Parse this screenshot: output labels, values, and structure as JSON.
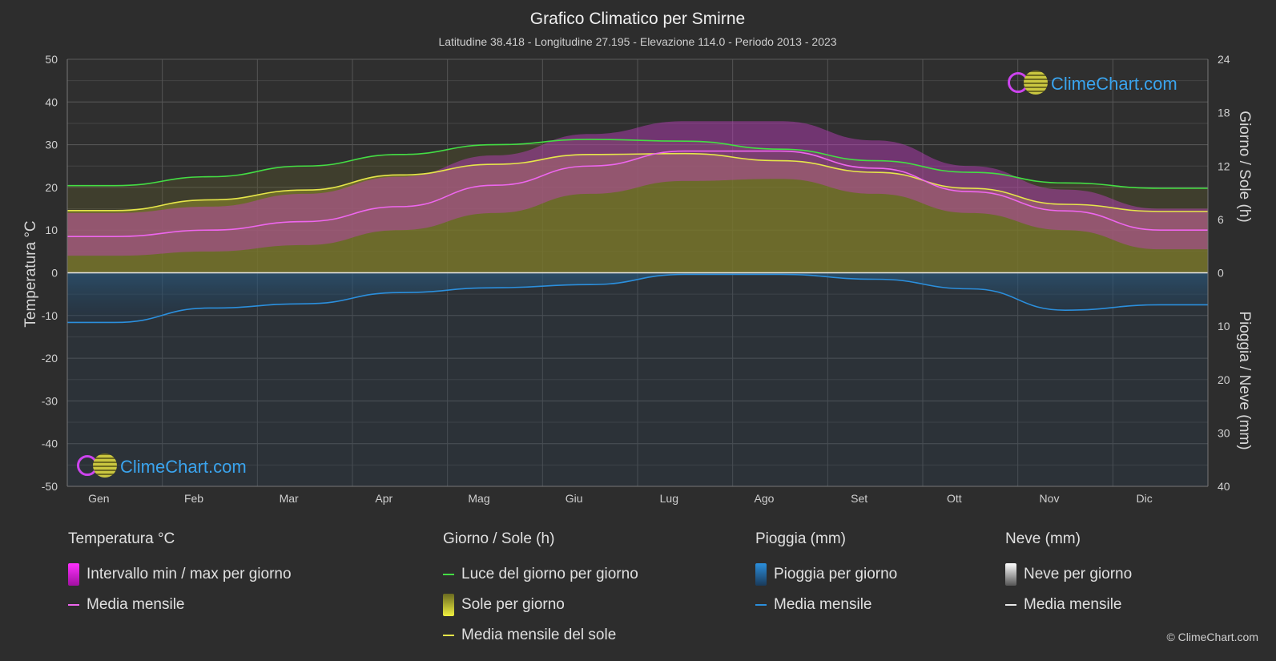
{
  "chart_data": {
    "type": "area",
    "title": "Grafico Climatico per Smirne",
    "subtitle": "Latitudine 38.418 - Longitudine 27.195 - Elevazione 114.0 - Periodo 2013 - 2023",
    "categories": [
      "Gen",
      "Feb",
      "Mar",
      "Apr",
      "Mag",
      "Giu",
      "Lug",
      "Ago",
      "Set",
      "Ott",
      "Nov",
      "Dic"
    ],
    "axes": {
      "left": {
        "label": "Temperatura °C",
        "min": -50,
        "max": 50,
        "ticks": [
          "50",
          "40",
          "30",
          "20",
          "10",
          "0",
          "-10",
          "-20",
          "-30",
          "-40",
          "-50"
        ]
      },
      "right_top": {
        "label": "Giorno / Sole (h)",
        "min": 0,
        "max": 24,
        "ticks": [
          "24",
          "18",
          "12",
          "6",
          "0"
        ]
      },
      "right_bottom": {
        "label": "Pioggia / Neve (mm)",
        "min": 0,
        "max": 40,
        "ticks": [
          "0",
          "10",
          "20",
          "30",
          "40"
        ]
      }
    },
    "grid": true,
    "series": [
      {
        "name": "Luce del giorno per giorno",
        "unit": "h",
        "color": "#44dd44",
        "values": [
          9.8,
          10.8,
          12.0,
          13.3,
          14.4,
          15.0,
          14.8,
          13.9,
          12.6,
          11.3,
          10.1,
          9.5
        ]
      },
      {
        "name": "Media mensile del sole",
        "unit": "h",
        "color": "#e6e64a",
        "values": [
          7.0,
          8.2,
          9.3,
          11.0,
          12.2,
          13.3,
          13.4,
          12.6,
          11.3,
          9.5,
          7.7,
          6.9
        ]
      },
      {
        "name": "Media mensile",
        "group": "Temperatura °C",
        "unit": "°C",
        "color": "#ee66ee",
        "values": [
          8.5,
          10.0,
          12.0,
          15.5,
          20.5,
          25.0,
          28.5,
          28.5,
          24.5,
          19.0,
          14.5,
          10.0
        ]
      },
      {
        "name": "Intervallo min / max per giorno (max)",
        "unit": "°C",
        "values": [
          14,
          15.5,
          18.5,
          22.5,
          27.5,
          32.5,
          35.5,
          35.5,
          31,
          25,
          19.5,
          15
        ]
      },
      {
        "name": "Intervallo min / max per giorno (min)",
        "unit": "°C",
        "values": [
          4,
          5,
          6.5,
          10,
          14,
          18.5,
          21.5,
          22,
          18.5,
          14,
          10,
          5.5
        ]
      },
      {
        "name": "Media mensile",
        "group": "Pioggia (mm)",
        "unit": "mm",
        "color": "#2b8fdd",
        "values": [
          9.3,
          6.6,
          5.8,
          3.7,
          2.8,
          2.2,
          0.3,
          0.3,
          1.2,
          3.0,
          7.0,
          6.0
        ]
      }
    ]
  },
  "legend": {
    "groups": [
      {
        "title": "Temperatura °C",
        "items": [
          {
            "label": "Intervallo min / max per giorno",
            "kind": "box",
            "color": "#e020e0"
          },
          {
            "label": "Media mensile",
            "kind": "line",
            "color": "#ee66ee"
          }
        ]
      },
      {
        "title": "Giorno / Sole (h)",
        "items": [
          {
            "label": "Luce del giorno per giorno",
            "kind": "line",
            "color": "#44dd44"
          },
          {
            "label": "Sole per giorno",
            "kind": "box",
            "color": "#d8d83a"
          },
          {
            "label": "Media mensile del sole",
            "kind": "line",
            "color": "#e6e64a"
          }
        ]
      },
      {
        "title": "Pioggia (mm)",
        "items": [
          {
            "label": "Pioggia per giorno",
            "kind": "box",
            "color": "#2b8fdd"
          },
          {
            "label": "Media mensile",
            "kind": "line",
            "color": "#2b8fdd"
          }
        ]
      },
      {
        "title": "Neve (mm)",
        "items": [
          {
            "label": "Neve per giorno",
            "kind": "box",
            "color": "#e8e8e8"
          },
          {
            "label": "Media mensile",
            "kind": "line",
            "color": "#e8e8e8"
          }
        ]
      }
    ]
  },
  "branding": {
    "logo_text": "ClimeChart.com",
    "copyright": "© ClimeChart.com"
  }
}
